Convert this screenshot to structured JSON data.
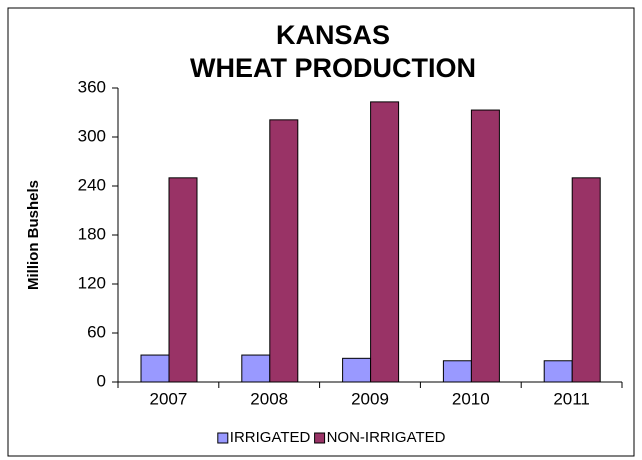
{
  "chart_data": {
    "type": "bar",
    "title": [
      "KANSAS",
      "WHEAT PRODUCTION"
    ],
    "ylabel": "Million Bushels",
    "categories": [
      "2007",
      "2008",
      "2009",
      "2010",
      "2011"
    ],
    "series": [
      {
        "name": "IRRIGATED",
        "color": "#9999ff",
        "values": [
          33,
          33,
          29,
          26,
          26
        ]
      },
      {
        "name": "NON-IRRIGATED",
        "color": "#993366",
        "values": [
          250,
          321,
          343,
          333,
          250
        ]
      }
    ],
    "ylim": [
      0,
      360
    ],
    "yticks": [
      0,
      60,
      120,
      180,
      240,
      300,
      360
    ],
    "grid": false,
    "legend": "bottom"
  }
}
